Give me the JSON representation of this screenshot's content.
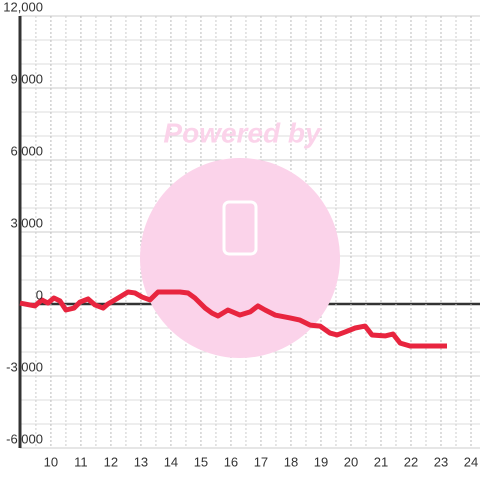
{
  "chart_data": {
    "type": "line",
    "watermark": "Powered by",
    "x": [
      8.97,
      9.47,
      9.7,
      9.9,
      10.1,
      10.3,
      10.5,
      10.77,
      10.97,
      11.24,
      11.47,
      11.74,
      11.9,
      12.24,
      12.57,
      12.8,
      13.04,
      13.3,
      13.57,
      14.3,
      14.57,
      14.8,
      15.14,
      15.37,
      15.57,
      15.9,
      16.3,
      16.64,
      16.9,
      17.14,
      17.47,
      17.97,
      18.3,
      18.64,
      18.97,
      19.3,
      19.54,
      19.8,
      20.14,
      20.47,
      20.7,
      21.14,
      21.4,
      21.64,
      21.97,
      22.64,
      23.2
    ],
    "series": [
      {
        "color": "#e8253f",
        "values": [
          40,
          -80,
          170,
          40,
          250,
          130,
          -250,
          -170,
          80,
          210,
          -40,
          -170,
          0,
          250,
          500,
          460,
          290,
          170,
          500,
          500,
          460,
          250,
          -170,
          -380,
          -500,
          -250,
          -460,
          -330,
          -80,
          -250,
          -460,
          -580,
          -670,
          -880,
          -920,
          -1210,
          -1290,
          -1170,
          -1000,
          -920,
          -1290,
          -1330,
          -1250,
          -1630,
          -1750,
          -1750,
          -1750
        ]
      }
    ],
    "xlim": [
      8.97,
      24.3
    ],
    "xticks": [
      10,
      11,
      12,
      13,
      14,
      15,
      16,
      17,
      18,
      19,
      20,
      21,
      22,
      23,
      24
    ],
    "ylim": [
      -6000,
      12000
    ],
    "yticks": [
      {
        "value": -6000,
        "label": "-6,000"
      },
      {
        "value": -3000,
        "label": "-3,000"
      },
      0,
      {
        "value": 3000,
        "label": "3,000"
      },
      {
        "value": 6000,
        "label": "6,000"
      },
      {
        "value": 9000,
        "label": "9,000"
      },
      {
        "value": 12000,
        "label": "12,000"
      }
    ],
    "grid": true
  }
}
